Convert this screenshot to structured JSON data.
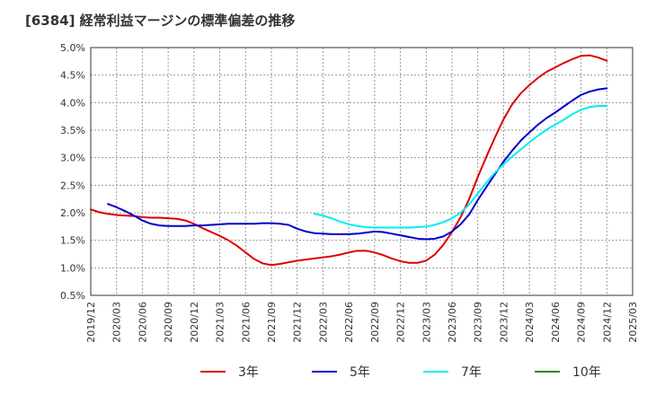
{
  "chart_data": {
    "type": "line",
    "title": "[6384]  経常利益マージンの標準偏差の推移",
    "xlabel": "",
    "ylabel": "",
    "grid": true,
    "legend_position": "bottom",
    "x_ticks": [
      "2019/12",
      "2020/03",
      "2020/06",
      "2020/09",
      "2020/12",
      "2021/03",
      "2021/06",
      "2021/09",
      "2021/12",
      "2022/03",
      "2022/06",
      "2022/09",
      "2022/12",
      "2023/03",
      "2023/06",
      "2023/09",
      "2023/12",
      "2024/03",
      "2024/06",
      "2024/09",
      "2024/12",
      "2025/03"
    ],
    "y_ticks": [
      "0.5%",
      "1.0%",
      "1.5%",
      "2.0%",
      "2.5%",
      "3.0%",
      "3.5%",
      "4.0%",
      "4.5%",
      "5.0%"
    ],
    "ylim": [
      0.5,
      5.0
    ],
    "x_range": [
      "2019/12",
      "2025/03"
    ],
    "series": [
      {
        "name": "3年",
        "color": "#dd0000",
        "points": [
          [
            "2019/12",
            2.06
          ],
          [
            "2020/01",
            2.01
          ],
          [
            "2020/02",
            1.98
          ],
          [
            "2020/03",
            1.96
          ],
          [
            "2020/04",
            1.95
          ],
          [
            "2020/05",
            1.94
          ],
          [
            "2020/06",
            1.92
          ],
          [
            "2020/07",
            1.91
          ],
          [
            "2020/08",
            1.91
          ],
          [
            "2020/09",
            1.9
          ],
          [
            "2020/10",
            1.89
          ],
          [
            "2020/11",
            1.86
          ],
          [
            "2020/12",
            1.8
          ],
          [
            "2021/01",
            1.72
          ],
          [
            "2021/02",
            1.65
          ],
          [
            "2021/03",
            1.58
          ],
          [
            "2021/04",
            1.5
          ],
          [
            "2021/05",
            1.4
          ],
          [
            "2021/06",
            1.28
          ],
          [
            "2021/07",
            1.16
          ],
          [
            "2021/08",
            1.08
          ],
          [
            "2021/09",
            1.05
          ],
          [
            "2021/10",
            1.07
          ],
          [
            "2021/11",
            1.1
          ],
          [
            "2021/12",
            1.13
          ],
          [
            "2022/01",
            1.15
          ],
          [
            "2022/02",
            1.17
          ],
          [
            "2022/03",
            1.19
          ],
          [
            "2022/04",
            1.21
          ],
          [
            "2022/05",
            1.24
          ],
          [
            "2022/06",
            1.28
          ],
          [
            "2022/07",
            1.31
          ],
          [
            "2022/08",
            1.31
          ],
          [
            "2022/09",
            1.28
          ],
          [
            "2022/10",
            1.23
          ],
          [
            "2022/11",
            1.17
          ],
          [
            "2022/12",
            1.12
          ],
          [
            "2023/01",
            1.09
          ],
          [
            "2023/02",
            1.09
          ],
          [
            "2023/03",
            1.13
          ],
          [
            "2023/04",
            1.24
          ],
          [
            "2023/05",
            1.42
          ],
          [
            "2023/06",
            1.65
          ],
          [
            "2023/07",
            1.92
          ],
          [
            "2023/08",
            2.25
          ],
          [
            "2023/09",
            2.65
          ],
          [
            "2023/10",
            3.02
          ],
          [
            "2023/11",
            3.37
          ],
          [
            "2023/12",
            3.7
          ],
          [
            "2024/01",
            3.97
          ],
          [
            "2024/02",
            4.17
          ],
          [
            "2024/03",
            4.32
          ],
          [
            "2024/04",
            4.45
          ],
          [
            "2024/05",
            4.56
          ],
          [
            "2024/06",
            4.64
          ],
          [
            "2024/07",
            4.72
          ],
          [
            "2024/08",
            4.79
          ],
          [
            "2024/09",
            4.85
          ],
          [
            "2024/10",
            4.86
          ],
          [
            "2024/11",
            4.82
          ],
          [
            "2024/12",
            4.76
          ]
        ]
      },
      {
        "name": "5年",
        "color": "#0000cc",
        "points": [
          [
            "2020/02",
            2.16
          ],
          [
            "2020/03",
            2.1
          ],
          [
            "2020/04",
            2.03
          ],
          [
            "2020/05",
            1.95
          ],
          [
            "2020/06",
            1.86
          ],
          [
            "2020/07",
            1.8
          ],
          [
            "2020/08",
            1.77
          ],
          [
            "2020/09",
            1.76
          ],
          [
            "2020/10",
            1.76
          ],
          [
            "2020/11",
            1.76
          ],
          [
            "2020/12",
            1.77
          ],
          [
            "2021/01",
            1.77
          ],
          [
            "2021/02",
            1.78
          ],
          [
            "2021/03",
            1.79
          ],
          [
            "2021/04",
            1.8
          ],
          [
            "2021/05",
            1.8
          ],
          [
            "2021/06",
            1.8
          ],
          [
            "2021/07",
            1.8
          ],
          [
            "2021/08",
            1.81
          ],
          [
            "2021/09",
            1.81
          ],
          [
            "2021/10",
            1.8
          ],
          [
            "2021/11",
            1.78
          ],
          [
            "2021/12",
            1.71
          ],
          [
            "2022/01",
            1.66
          ],
          [
            "2022/02",
            1.63
          ],
          [
            "2022/03",
            1.62
          ],
          [
            "2022/04",
            1.61
          ],
          [
            "2022/05",
            1.61
          ],
          [
            "2022/06",
            1.61
          ],
          [
            "2022/07",
            1.62
          ],
          [
            "2022/08",
            1.64
          ],
          [
            "2022/09",
            1.66
          ],
          [
            "2022/10",
            1.65
          ],
          [
            "2022/11",
            1.62
          ],
          [
            "2022/12",
            1.59
          ],
          [
            "2023/01",
            1.56
          ],
          [
            "2023/02",
            1.53
          ],
          [
            "2023/03",
            1.52
          ],
          [
            "2023/04",
            1.53
          ],
          [
            "2023/05",
            1.57
          ],
          [
            "2023/06",
            1.66
          ],
          [
            "2023/07",
            1.79
          ],
          [
            "2023/08",
            1.97
          ],
          [
            "2023/09",
            2.23
          ],
          [
            "2023/10",
            2.47
          ],
          [
            "2023/11",
            2.7
          ],
          [
            "2023/12",
            2.93
          ],
          [
            "2024/01",
            3.13
          ],
          [
            "2024/02",
            3.31
          ],
          [
            "2024/03",
            3.46
          ],
          [
            "2024/04",
            3.6
          ],
          [
            "2024/05",
            3.72
          ],
          [
            "2024/06",
            3.82
          ],
          [
            "2024/07",
            3.93
          ],
          [
            "2024/08",
            4.04
          ],
          [
            "2024/09",
            4.14
          ],
          [
            "2024/10",
            4.2
          ],
          [
            "2024/11",
            4.24
          ],
          [
            "2024/12",
            4.26
          ]
        ]
      },
      {
        "name": "7年",
        "color": "#00eeee",
        "points": [
          [
            "2022/02",
            1.98
          ],
          [
            "2022/03",
            1.95
          ],
          [
            "2022/04",
            1.9
          ],
          [
            "2022/05",
            1.84
          ],
          [
            "2022/06",
            1.79
          ],
          [
            "2022/07",
            1.76
          ],
          [
            "2022/08",
            1.74
          ],
          [
            "2022/09",
            1.73
          ],
          [
            "2022/10",
            1.73
          ],
          [
            "2022/11",
            1.73
          ],
          [
            "2022/12",
            1.73
          ],
          [
            "2023/01",
            1.73
          ],
          [
            "2023/02",
            1.74
          ],
          [
            "2023/03",
            1.75
          ],
          [
            "2023/04",
            1.78
          ],
          [
            "2023/05",
            1.83
          ],
          [
            "2023/06",
            1.9
          ],
          [
            "2023/07",
            2.0
          ],
          [
            "2023/08",
            2.15
          ],
          [
            "2023/09",
            2.35
          ],
          [
            "2023/10",
            2.55
          ],
          [
            "2023/11",
            2.73
          ],
          [
            "2023/12",
            2.88
          ],
          [
            "2024/01",
            3.02
          ],
          [
            "2024/02",
            3.15
          ],
          [
            "2024/03",
            3.28
          ],
          [
            "2024/04",
            3.4
          ],
          [
            "2024/05",
            3.51
          ],
          [
            "2024/06",
            3.6
          ],
          [
            "2024/07",
            3.69
          ],
          [
            "2024/08",
            3.79
          ],
          [
            "2024/09",
            3.87
          ],
          [
            "2024/10",
            3.92
          ],
          [
            "2024/11",
            3.94
          ],
          [
            "2024/12",
            3.94
          ]
        ]
      },
      {
        "name": "10年",
        "color": "#228b22",
        "points": []
      }
    ]
  }
}
